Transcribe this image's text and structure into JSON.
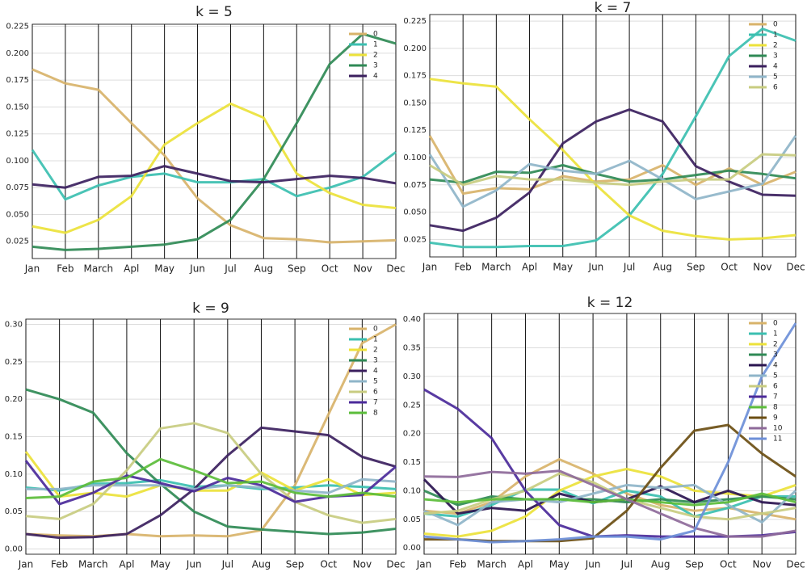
{
  "chart_data": [
    {
      "type": "line",
      "title": "k = 5",
      "categories": [
        "Jan",
        "Feb",
        "March",
        "Apl",
        "May",
        "Jun",
        "Jul",
        "Aug",
        "Sep",
        "Oct",
        "Nov",
        "Dec"
      ],
      "ylim": [
        0.009,
        0.227
      ],
      "yticks": [
        {
          "value": 0.025,
          "label": "0.025"
        },
        {
          "value": 0.05,
          "label": "0.050"
        },
        {
          "value": 0.075,
          "label": "0.075"
        },
        {
          "value": 0.1,
          "label": "0.100"
        },
        {
          "value": 0.125,
          "label": "0.125"
        },
        {
          "value": 0.15,
          "label": "0.150"
        },
        {
          "value": 0.175,
          "label": "0.175"
        },
        {
          "value": 0.2,
          "label": "0.200"
        },
        {
          "value": 0.225,
          "label": "0.225"
        }
      ],
      "grid": true,
      "legend": "upper right",
      "series": [
        {
          "name": "0",
          "color": "#d8b36a",
          "values": [
            0.185,
            0.172,
            0.166,
            0.135,
            0.105,
            0.065,
            0.04,
            0.028,
            0.027,
            0.024,
            0.025,
            0.026
          ]
        },
        {
          "name": "1",
          "color": "#3bbfb0",
          "values": [
            0.11,
            0.064,
            0.077,
            0.085,
            0.088,
            0.08,
            0.08,
            0.083,
            0.067,
            0.075,
            0.085,
            0.108
          ]
        },
        {
          "name": "2",
          "color": "#ece23a",
          "values": [
            0.039,
            0.033,
            0.045,
            0.067,
            0.115,
            0.135,
            0.153,
            0.14,
            0.088,
            0.07,
            0.059,
            0.056
          ]
        },
        {
          "name": "3",
          "color": "#2f8a55",
          "values": [
            0.02,
            0.017,
            0.018,
            0.02,
            0.022,
            0.027,
            0.045,
            0.083,
            0.135,
            0.19,
            0.218,
            0.209
          ]
        },
        {
          "name": "4",
          "color": "#3b1f5e",
          "values": [
            0.078,
            0.075,
            0.085,
            0.086,
            0.095,
            0.088,
            0.081,
            0.08,
            0.083,
            0.086,
            0.084,
            0.079
          ]
        }
      ]
    },
    {
      "type": "line",
      "title": "k = 7",
      "categories": [
        "Jan",
        "Feb",
        "March",
        "Apl",
        "May",
        "Jun",
        "Jul",
        "Aug",
        "Sep",
        "Oct",
        "Nov",
        "Dec"
      ],
      "ylim": [
        0.009,
        0.231
      ],
      "yticks": [
        {
          "value": 0.025,
          "label": "0.025"
        },
        {
          "value": 0.05,
          "label": "0.050"
        },
        {
          "value": 0.075,
          "label": "0.075"
        },
        {
          "value": 0.1,
          "label": "0.100"
        },
        {
          "value": 0.125,
          "label": "0.125"
        },
        {
          "value": 0.15,
          "label": "0.150"
        },
        {
          "value": 0.175,
          "label": "0.175"
        },
        {
          "value": 0.2,
          "label": "0.200"
        },
        {
          "value": 0.225,
          "label": "0.225"
        }
      ],
      "grid": true,
      "legend": "upper right",
      "series": [
        {
          "name": "0",
          "color": "#d8b36a",
          "values": [
            0.12,
            0.067,
            0.072,
            0.071,
            0.083,
            0.078,
            0.08,
            0.093,
            0.075,
            0.09,
            0.075,
            0.087
          ]
        },
        {
          "name": "1",
          "color": "#3bbfb0",
          "values": [
            0.022,
            0.018,
            0.018,
            0.019,
            0.019,
            0.024,
            0.047,
            0.085,
            0.138,
            0.193,
            0.218,
            0.207
          ]
        },
        {
          "name": "2",
          "color": "#ece23a",
          "values": [
            0.172,
            0.168,
            0.165,
            0.135,
            0.107,
            0.075,
            0.047,
            0.033,
            0.028,
            0.025,
            0.026,
            0.029
          ]
        },
        {
          "name": "3",
          "color": "#2f8a55",
          "values": [
            0.08,
            0.077,
            0.087,
            0.086,
            0.093,
            0.085,
            0.078,
            0.08,
            0.084,
            0.088,
            0.085,
            0.081
          ]
        },
        {
          "name": "4",
          "color": "#3b1f5e",
          "values": [
            0.038,
            0.033,
            0.045,
            0.068,
            0.113,
            0.133,
            0.144,
            0.133,
            0.092,
            0.078,
            0.066,
            0.065
          ]
        },
        {
          "name": "5",
          "color": "#8fb5c9",
          "values": [
            0.103,
            0.055,
            0.07,
            0.094,
            0.088,
            0.085,
            0.097,
            0.08,
            0.062,
            0.069,
            0.076,
            0.12
          ]
        },
        {
          "name": "6",
          "color": "#c8cc80",
          "values": [
            0.093,
            0.075,
            0.083,
            0.08,
            0.08,
            0.077,
            0.075,
            0.078,
            0.08,
            0.08,
            0.103,
            0.102
          ]
        }
      ]
    },
    {
      "type": "line",
      "title": "k = 9",
      "categories": [
        "Jan",
        "Feb",
        "March",
        "Apl",
        "May",
        "Jun",
        "Jul",
        "Aug",
        "Sep",
        "Oct",
        "Nov",
        "Dec"
      ],
      "ylim": [
        -0.007,
        0.307
      ],
      "yticks": [
        {
          "value": 0,
          "label": "0.00"
        },
        {
          "value": 0.05,
          "label": "0.05"
        },
        {
          "value": 0.1,
          "label": "0.10"
        },
        {
          "value": 0.15,
          "label": "0.15"
        },
        {
          "value": 0.2,
          "label": "0.20"
        },
        {
          "value": 0.25,
          "label": "0.25"
        },
        {
          "value": 0.3,
          "label": "0.30"
        }
      ],
      "grid": true,
      "legend": "upper right",
      "series": [
        {
          "name": "0",
          "color": "#d8b36a",
          "values": [
            0.02,
            0.018,
            0.017,
            0.02,
            0.017,
            0.018,
            0.017,
            0.025,
            0.085,
            0.18,
            0.275,
            0.3
          ]
        },
        {
          "name": "1",
          "color": "#3bbfb0",
          "values": [
            0.082,
            0.078,
            0.087,
            0.088,
            0.092,
            0.083,
            0.085,
            0.08,
            0.082,
            0.085,
            0.083,
            0.08
          ]
        },
        {
          "name": "2",
          "color": "#ece23a",
          "values": [
            0.13,
            0.07,
            0.075,
            0.07,
            0.085,
            0.078,
            0.078,
            0.102,
            0.078,
            0.093,
            0.072,
            0.075
          ]
        },
        {
          "name": "3",
          "color": "#2f8a55",
          "values": [
            0.213,
            0.2,
            0.182,
            0.128,
            0.087,
            0.05,
            0.03,
            0.026,
            0.023,
            0.02,
            0.022,
            0.027
          ]
        },
        {
          "name": "4",
          "color": "#3b1f5e",
          "values": [
            0.02,
            0.015,
            0.016,
            0.02,
            0.045,
            0.08,
            0.125,
            0.162,
            0.157,
            0.152,
            0.123,
            0.11
          ]
        },
        {
          "name": "5",
          "color": "#8fb5c9",
          "values": [
            0.08,
            0.08,
            0.085,
            0.085,
            0.085,
            0.08,
            0.085,
            0.082,
            0.078,
            0.075,
            0.093,
            0.09
          ]
        },
        {
          "name": "6",
          "color": "#c8cc80",
          "values": [
            0.044,
            0.04,
            0.06,
            0.105,
            0.161,
            0.168,
            0.155,
            0.1,
            0.063,
            0.045,
            0.035,
            0.04
          ]
        },
        {
          "name": "7",
          "color": "#4b2a9a",
          "values": [
            0.118,
            0.06,
            0.075,
            0.098,
            0.088,
            0.077,
            0.095,
            0.085,
            0.063,
            0.07,
            0.072,
            0.11
          ]
        },
        {
          "name": "8",
          "color": "#5bbd3a",
          "values": [
            0.068,
            0.07,
            0.09,
            0.095,
            0.12,
            0.105,
            0.088,
            0.09,
            0.075,
            0.07,
            0.075,
            0.07
          ]
        }
      ]
    },
    {
      "type": "line",
      "title": "k = 12",
      "categories": [
        "Jan",
        "Feb",
        "March",
        "Apl",
        "May",
        "Jun",
        "Jul",
        "Aug",
        "Sep",
        "Oct",
        "Nov",
        "Dec"
      ],
      "ylim": [
        -0.011,
        0.41
      ],
      "yticks": [
        {
          "value": 0,
          "label": "0.00"
        },
        {
          "value": 0.05,
          "label": "0.05"
        },
        {
          "value": 0.1,
          "label": "0.10"
        },
        {
          "value": 0.15,
          "label": "0.15"
        },
        {
          "value": 0.2,
          "label": "0.20"
        },
        {
          "value": 0.25,
          "label": "0.25"
        },
        {
          "value": 0.3,
          "label": "0.30"
        },
        {
          "value": 0.35,
          "label": "0.35"
        },
        {
          "value": 0.4,
          "label": "0.40"
        }
      ],
      "grid": true,
      "legend": "upper right",
      "series": [
        {
          "name": "0",
          "color": "#d8b36a",
          "values": [
            0.065,
            0.06,
            0.08,
            0.125,
            0.155,
            0.13,
            0.095,
            0.075,
            0.065,
            0.07,
            0.06,
            0.05
          ]
        },
        {
          "name": "1",
          "color": "#3bbfb0",
          "values": [
            0.06,
            0.055,
            0.075,
            0.102,
            0.102,
            0.078,
            0.1,
            0.09,
            0.055,
            0.07,
            0.09,
            0.09
          ]
        },
        {
          "name": "2",
          "color": "#ece23a",
          "values": [
            0.025,
            0.02,
            0.03,
            0.055,
            0.1,
            0.125,
            0.138,
            0.125,
            0.1,
            0.095,
            0.09,
            0.11
          ]
        },
        {
          "name": "3",
          "color": "#2f8a55",
          "values": [
            0.1,
            0.075,
            0.09,
            0.085,
            0.085,
            0.085,
            0.08,
            0.085,
            0.08,
            0.085,
            0.09,
            0.085
          ]
        },
        {
          "name": "4",
          "color": "#2a1450",
          "values": [
            0.12,
            0.06,
            0.07,
            0.065,
            0.095,
            0.08,
            0.085,
            0.108,
            0.08,
            0.1,
            0.08,
            0.075
          ]
        },
        {
          "name": "5",
          "color": "#8fb5c9",
          "values": [
            0.065,
            0.04,
            0.08,
            0.085,
            0.08,
            0.095,
            0.11,
            0.105,
            0.11,
            0.075,
            0.045,
            0.1
          ]
        },
        {
          "name": "6",
          "color": "#c8cc80",
          "values": [
            0.06,
            0.065,
            0.085,
            0.1,
            0.13,
            0.115,
            0.085,
            0.07,
            0.055,
            0.05,
            0.06,
            0.07
          ]
        },
        {
          "name": "7",
          "color": "#4b2a9a",
          "values": [
            0.277,
            0.243,
            0.192,
            0.1,
            0.04,
            0.02,
            0.022,
            0.02,
            0.02,
            0.02,
            0.022,
            0.028
          ]
        },
        {
          "name": "8",
          "color": "#5bbd3a",
          "values": [
            0.085,
            0.08,
            0.085,
            0.085,
            0.085,
            0.08,
            0.085,
            0.08,
            0.075,
            0.08,
            0.095,
            0.08
          ]
        },
        {
          "name": "9",
          "color": "#6b4e12",
          "values": [
            0.015,
            0.015,
            0.012,
            0.012,
            0.012,
            0.017,
            0.065,
            0.14,
            0.205,
            0.215,
            0.165,
            0.125
          ]
        },
        {
          "name": "10",
          "color": "#8e6a9a",
          "values": [
            0.125,
            0.124,
            0.133,
            0.13,
            0.135,
            0.11,
            0.085,
            0.06,
            0.035,
            0.02,
            0.02,
            0.03
          ]
        },
        {
          "name": "11",
          "color": "#6d8fd8",
          "values": [
            0.02,
            0.015,
            0.01,
            0.012,
            0.015,
            0.02,
            0.02,
            0.015,
            0.03,
            0.15,
            0.3,
            0.393
          ]
        }
      ]
    }
  ]
}
